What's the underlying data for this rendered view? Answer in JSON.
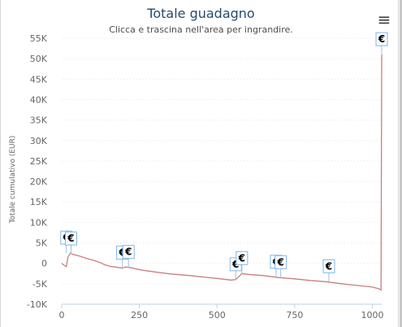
{
  "header": {
    "title": "Totale guadagno",
    "subtitle": "Clicca e trascina nell'area per ingrandire."
  },
  "menu": {
    "icon": "hamburger-menu-icon",
    "glyph": "≡"
  },
  "colors": {
    "line": "#c87f7f",
    "axis_text": "#666666",
    "title": "#274b6d",
    "flag_border": "#7cb5ec"
  },
  "chart_data": {
    "type": "line",
    "title": "Totale guadagno",
    "subtitle": "Clicca e trascina nell'area per ingrandire.",
    "ylabel": "Totale cumulativo (EUR)",
    "xlabel": "",
    "xlim": [
      0,
      1030
    ],
    "ylim": [
      -10000,
      55000
    ],
    "xticks": [
      0,
      250,
      500,
      750,
      1000
    ],
    "xtick_labels": [
      "0",
      "250",
      "500",
      "750",
      "1000"
    ],
    "yticks": [
      -10000,
      -5000,
      0,
      5000,
      10000,
      15000,
      20000,
      25000,
      30000,
      35000,
      40000,
      45000,
      50000,
      55000
    ],
    "ytick_labels": [
      "-10K",
      "-5K",
      "0",
      "5K",
      "10K",
      "15K",
      "20K",
      "25K",
      "30K",
      "35K",
      "40K",
      "45K",
      "50K",
      "55K"
    ],
    "grid": true,
    "series": [
      {
        "color": "#c87f7f",
        "points": [
          [
            0,
            0
          ],
          [
            8,
            -500
          ],
          [
            15,
            -800
          ],
          [
            20,
            1500
          ],
          [
            28,
            2500
          ],
          [
            35,
            2200
          ],
          [
            45,
            2000
          ],
          [
            60,
            1700
          ],
          [
            80,
            1200
          ],
          [
            100,
            800
          ],
          [
            120,
            300
          ],
          [
            140,
            -400
          ],
          [
            160,
            -800
          ],
          [
            180,
            -1000
          ],
          [
            195,
            -1200
          ],
          [
            205,
            -900
          ],
          [
            225,
            -1100
          ],
          [
            240,
            -1400
          ],
          [
            260,
            -1700
          ],
          [
            300,
            -2100
          ],
          [
            350,
            -2600
          ],
          [
            400,
            -2900
          ],
          [
            450,
            -3300
          ],
          [
            500,
            -3700
          ],
          [
            545,
            -4100
          ],
          [
            560,
            -4000
          ],
          [
            580,
            -2500
          ],
          [
            600,
            -2700
          ],
          [
            650,
            -3000
          ],
          [
            700,
            -3500
          ],
          [
            750,
            -3800
          ],
          [
            800,
            -4200
          ],
          [
            850,
            -4500
          ],
          [
            900,
            -5000
          ],
          [
            950,
            -5400
          ],
          [
            1000,
            -5800
          ],
          [
            1020,
            -6200
          ],
          [
            1028,
            -6500
          ],
          [
            1030,
            51000
          ]
        ]
      }
    ],
    "flags": [
      {
        "x": 15,
        "y": 2500,
        "text": "€"
      },
      {
        "x": 30,
        "y": 2300,
        "text": "€"
      },
      {
        "x": 195,
        "y": -1200,
        "text": "€"
      },
      {
        "x": 215,
        "y": -1000,
        "text": "€"
      },
      {
        "x": 560,
        "y": -4000,
        "text": "€"
      },
      {
        "x": 580,
        "y": -2500,
        "text": "€"
      },
      {
        "x": 690,
        "y": -3400,
        "text": "€"
      },
      {
        "x": 705,
        "y": -3500,
        "text": "€"
      },
      {
        "x": 860,
        "y": -4500,
        "text": "€"
      },
      {
        "x": 1030,
        "y": 51000,
        "text": "€"
      }
    ]
  }
}
